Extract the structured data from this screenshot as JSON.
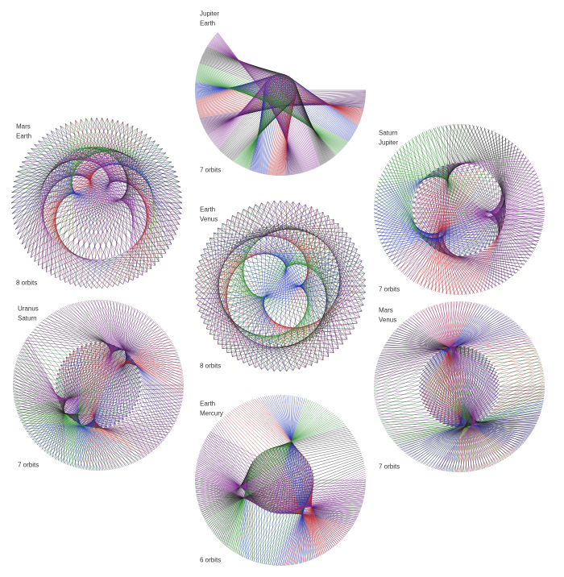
{
  "panels": [
    {
      "planet_outer": "Jupiter",
      "planet_inner": "Earth",
      "orbits": "7 orbits"
    },
    {
      "planet_outer": "Mars",
      "planet_inner": "Earth",
      "orbits": "8 orbits"
    },
    {
      "planet_outer": "Saturn",
      "planet_inner": "Jupiter",
      "orbits": "7 orbits"
    },
    {
      "planet_outer": "Earth",
      "planet_inner": "Venus",
      "orbits": "8 orbits"
    },
    {
      "planet_outer": "Uranus",
      "planet_inner": "Saturn",
      "orbits": "7 orbits"
    },
    {
      "planet_outer": "Mars",
      "planet_inner": "Venus",
      "orbits": "7 orbits"
    },
    {
      "planet_outer": "Earth",
      "planet_inner": "Mercury",
      "orbits": "6 orbits"
    }
  ]
}
